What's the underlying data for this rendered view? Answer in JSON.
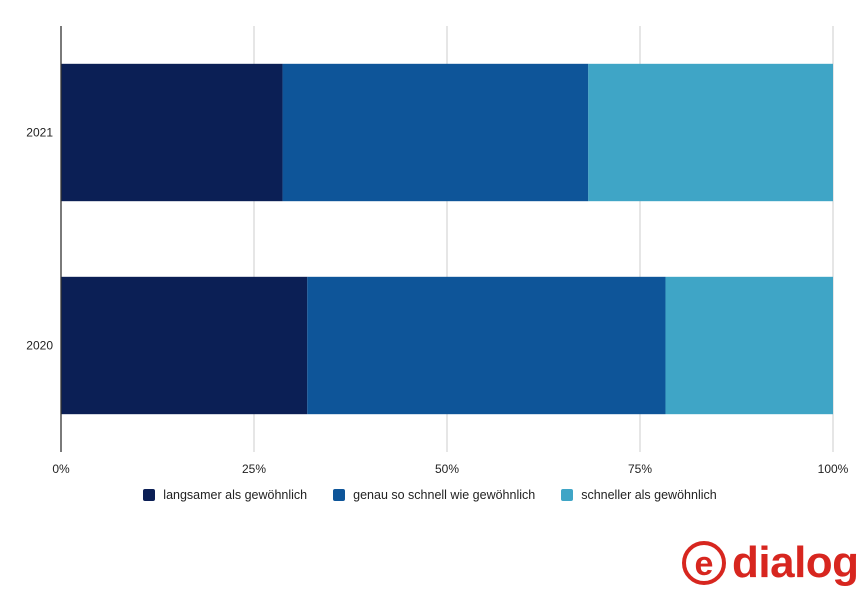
{
  "chart_data": {
    "type": "bar",
    "orientation": "horizontal",
    "stacked": true,
    "categories": [
      "2021",
      "2020"
    ],
    "series": [
      {
        "name": "langsamer als gewöhnlich",
        "values": [
          28.7,
          31.9
        ],
        "color": "#0b1f55"
      },
      {
        "name": "genau so schnell wie gewöhnlich",
        "values": [
          39.6,
          46.4
        ],
        "color": "#0e5599"
      },
      {
        "name": "schneller als gewöhnlich",
        "values": [
          31.7,
          21.7
        ],
        "color": "#3fa5c6"
      }
    ],
    "xlim": [
      0,
      100
    ],
    "xticks": [
      0,
      25,
      50,
      75,
      100
    ],
    "xtick_labels": [
      "0%",
      "25%",
      "50%",
      "75%",
      "100%"
    ],
    "grid": true,
    "legend_position": "bottom",
    "title": "",
    "xlabel": "",
    "ylabel": ""
  },
  "logo": {
    "text": "edialog",
    "mark_letter": "e",
    "word": "dialog",
    "color": "#d7261f"
  }
}
